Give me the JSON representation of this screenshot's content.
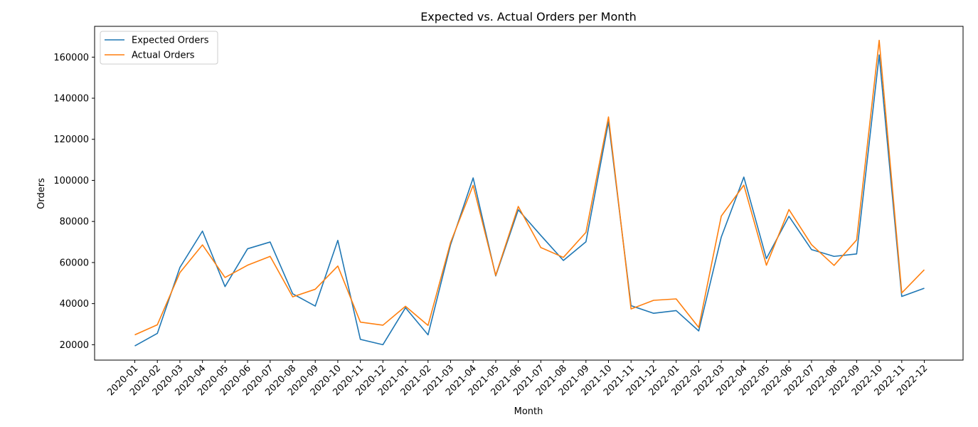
{
  "chart_data": {
    "type": "line",
    "title": "Expected vs. Actual Orders per Month",
    "xlabel": "Month",
    "ylabel": "Orders",
    "ylim": [
      12500,
      175000
    ],
    "yticks": [
      20000,
      40000,
      60000,
      80000,
      100000,
      120000,
      140000,
      160000
    ],
    "grid": false,
    "legend_position": "top-left",
    "categories": [
      "2020-01",
      "2020-02",
      "2020-03",
      "2020-04",
      "2020-05",
      "2020-06",
      "2020-07",
      "2020-08",
      "2020-09",
      "2020-10",
      "2020-11",
      "2020-12",
      "2021-01",
      "2021-02",
      "2021-03",
      "2021-04",
      "2021-05",
      "2021-06",
      "2021-07",
      "2021-08",
      "2021-09",
      "2021-10",
      "2021-11",
      "2021-12",
      "2022-01",
      "2022-02",
      "2022-03",
      "2022-04",
      "2022-05",
      "2022-06",
      "2022-07",
      "2022-08",
      "2022-09",
      "2022-10",
      "2022-11",
      "2022-12"
    ],
    "series": [
      {
        "name": "Expected Orders",
        "color": "#1f77b4",
        "values": [
          19400,
          25500,
          57600,
          75300,
          48300,
          66700,
          70000,
          44800,
          38800,
          70800,
          22600,
          20000,
          38000,
          24800,
          68700,
          101200,
          53500,
          85700,
          73200,
          61000,
          70100,
          128500,
          39000,
          35300,
          36600,
          26700,
          72400,
          101600,
          61900,
          82500,
          66300,
          63000,
          64200,
          161100,
          43500,
          47500
        ]
      },
      {
        "name": "Actual Orders",
        "color": "#ff7f0e",
        "values": [
          24800,
          29700,
          55100,
          68600,
          52700,
          58700,
          63000,
          43300,
          47000,
          58300,
          31000,
          29500,
          38700,
          29400,
          69800,
          97600,
          53800,
          87300,
          67300,
          62500,
          74700,
          130900,
          37400,
          41600,
          42300,
          28400,
          82600,
          97700,
          58700,
          85800,
          68700,
          58600,
          71000,
          168200,
          45200,
          56500
        ]
      }
    ]
  }
}
